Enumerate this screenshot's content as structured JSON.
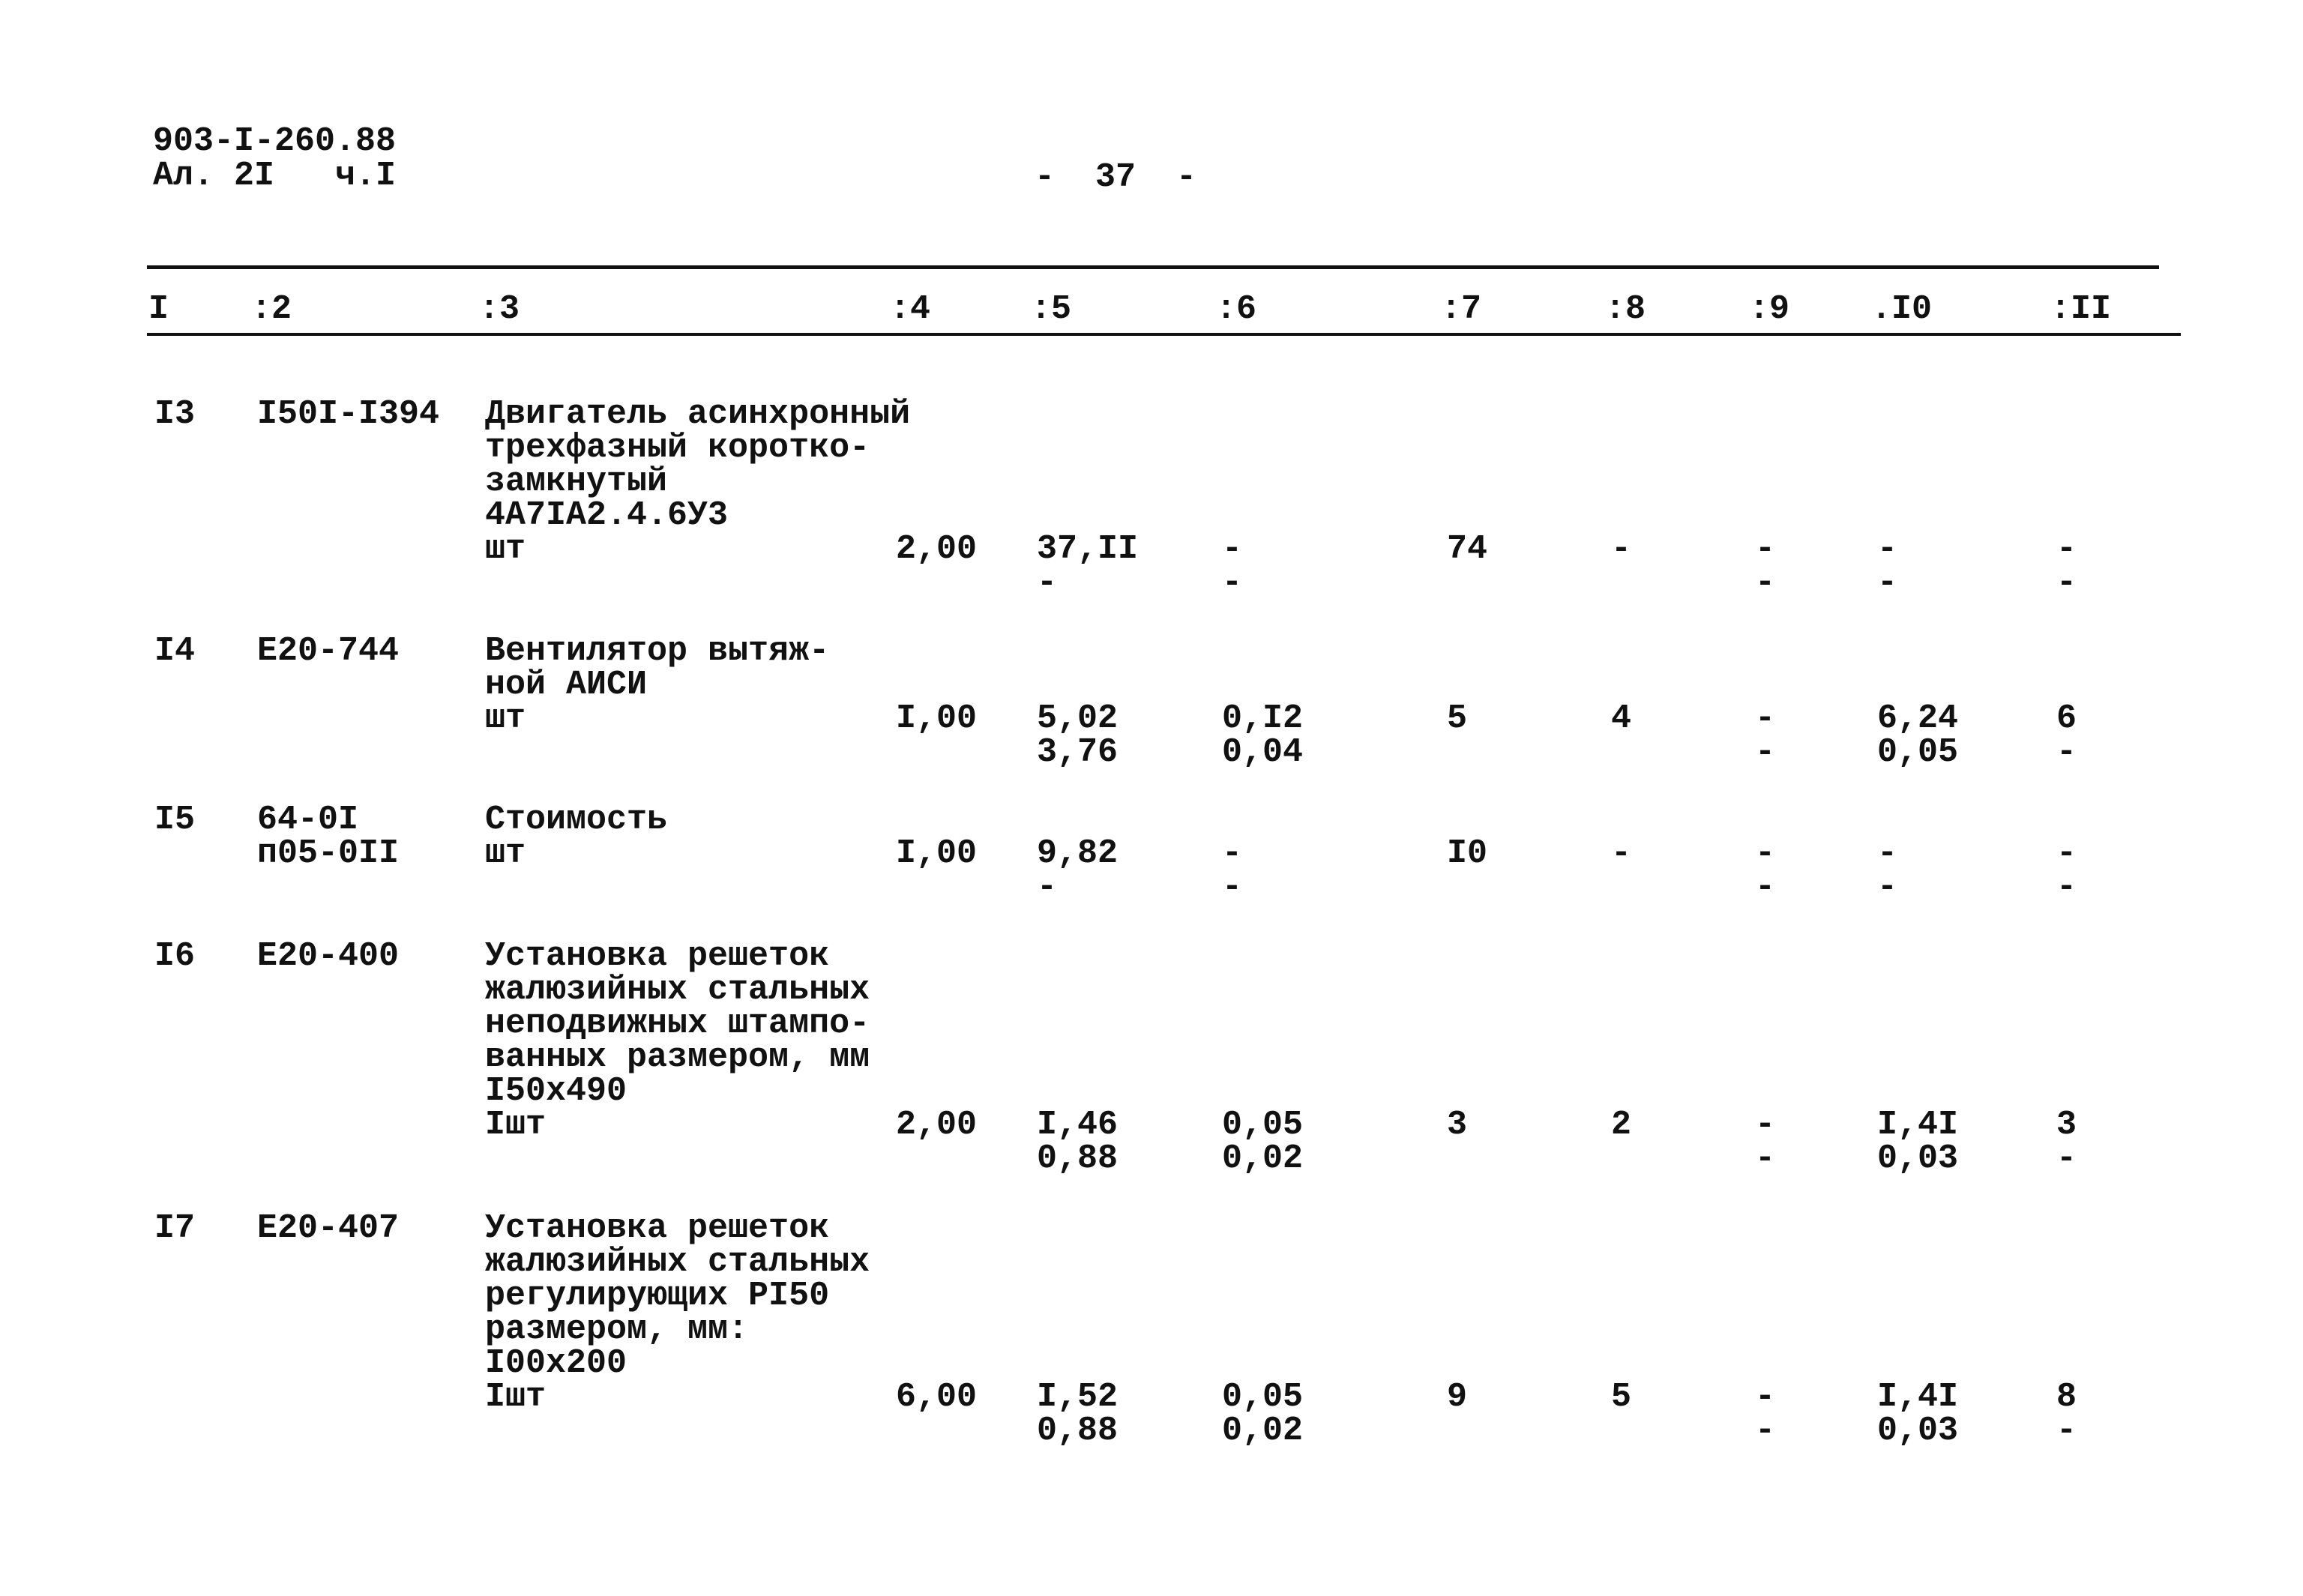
{
  "header": {
    "doc_code": "903-I-260.88",
    "sheet": "Ал. 2I   ч.I",
    "page": "-  37  -"
  },
  "columns": [
    "I",
    ":2",
    ":3",
    ":4",
    ":5",
    ":6",
    ":7",
    ":8",
    ":9",
    ".I0",
    ":II"
  ],
  "rows": [
    {
      "n": "I3",
      "code": [
        "I50I-I394"
      ],
      "desc": [
        "Двигатель асинхронный",
        "трехфазный коротко-",
        "замкнутый",
        "4А7IА2.4.6У3",
        "шт"
      ],
      "qty": "2,00",
      "c5": [
        "37,II",
        "-"
      ],
      "c6": [
        "-",
        "-"
      ],
      "c7": [
        "74",
        ""
      ],
      "c8": [
        "-",
        ""
      ],
      "c9": [
        "-",
        "-"
      ],
      "c10": [
        "-",
        "-"
      ],
      "c11": [
        "-",
        "-"
      ]
    },
    {
      "n": "I4",
      "code": [
        "Е20-744"
      ],
      "desc": [
        "Вентилятор вытяж-",
        "ной АИСИ",
        "шт"
      ],
      "qty": "I,00",
      "c5": [
        "5,02",
        "3,76"
      ],
      "c6": [
        "0,I2",
        "0,04"
      ],
      "c7": [
        "5",
        ""
      ],
      "c8": [
        "4",
        ""
      ],
      "c9": [
        "-",
        "-"
      ],
      "c10": [
        "6,24",
        "0,05"
      ],
      "c11": [
        "6",
        "-"
      ]
    },
    {
      "n": "I5",
      "code": [
        "64-0I",
        "п05-0II"
      ],
      "desc": [
        "Стоимость",
        "шт"
      ],
      "qty": "I,00",
      "c5": [
        "9,82",
        "-"
      ],
      "c6": [
        "-",
        "-"
      ],
      "c7": [
        "I0",
        ""
      ],
      "c8": [
        "-",
        ""
      ],
      "c9": [
        "-",
        "-"
      ],
      "c10": [
        "-",
        "-"
      ],
      "c11": [
        "-",
        "-"
      ]
    },
    {
      "n": "I6",
      "code": [
        "Е20-400"
      ],
      "desc": [
        "Установка решеток",
        "жалюзийных стальных",
        "неподвижных штампо-",
        "ванных размером, мм",
        "I50х490",
        "Iшт"
      ],
      "qty": "2,00",
      "c5": [
        "I,46",
        "0,88"
      ],
      "c6": [
        "0,05",
        "0,02"
      ],
      "c7": [
        "3",
        ""
      ],
      "c8": [
        "2",
        ""
      ],
      "c9": [
        "-",
        "-"
      ],
      "c10": [
        "I,4I",
        "0,03"
      ],
      "c11": [
        "3",
        "-"
      ]
    },
    {
      "n": "I7",
      "code": [
        "Е20-407"
      ],
      "desc": [
        "Установка решеток",
        "жалюзийных стальных",
        "регулирующих РI50",
        "размером, мм:",
        "I00х200",
        "Iшт"
      ],
      "qty": "6,00",
      "c5": [
        "I,52",
        "0,88"
      ],
      "c6": [
        "0,05",
        "0,02"
      ],
      "c7": [
        "9",
        ""
      ],
      "c8": [
        "5",
        ""
      ],
      "c9": [
        "-",
        "-"
      ],
      "c10": [
        "I,4I",
        "0,03"
      ],
      "c11": [
        "8",
        "-"
      ]
    }
  ]
}
